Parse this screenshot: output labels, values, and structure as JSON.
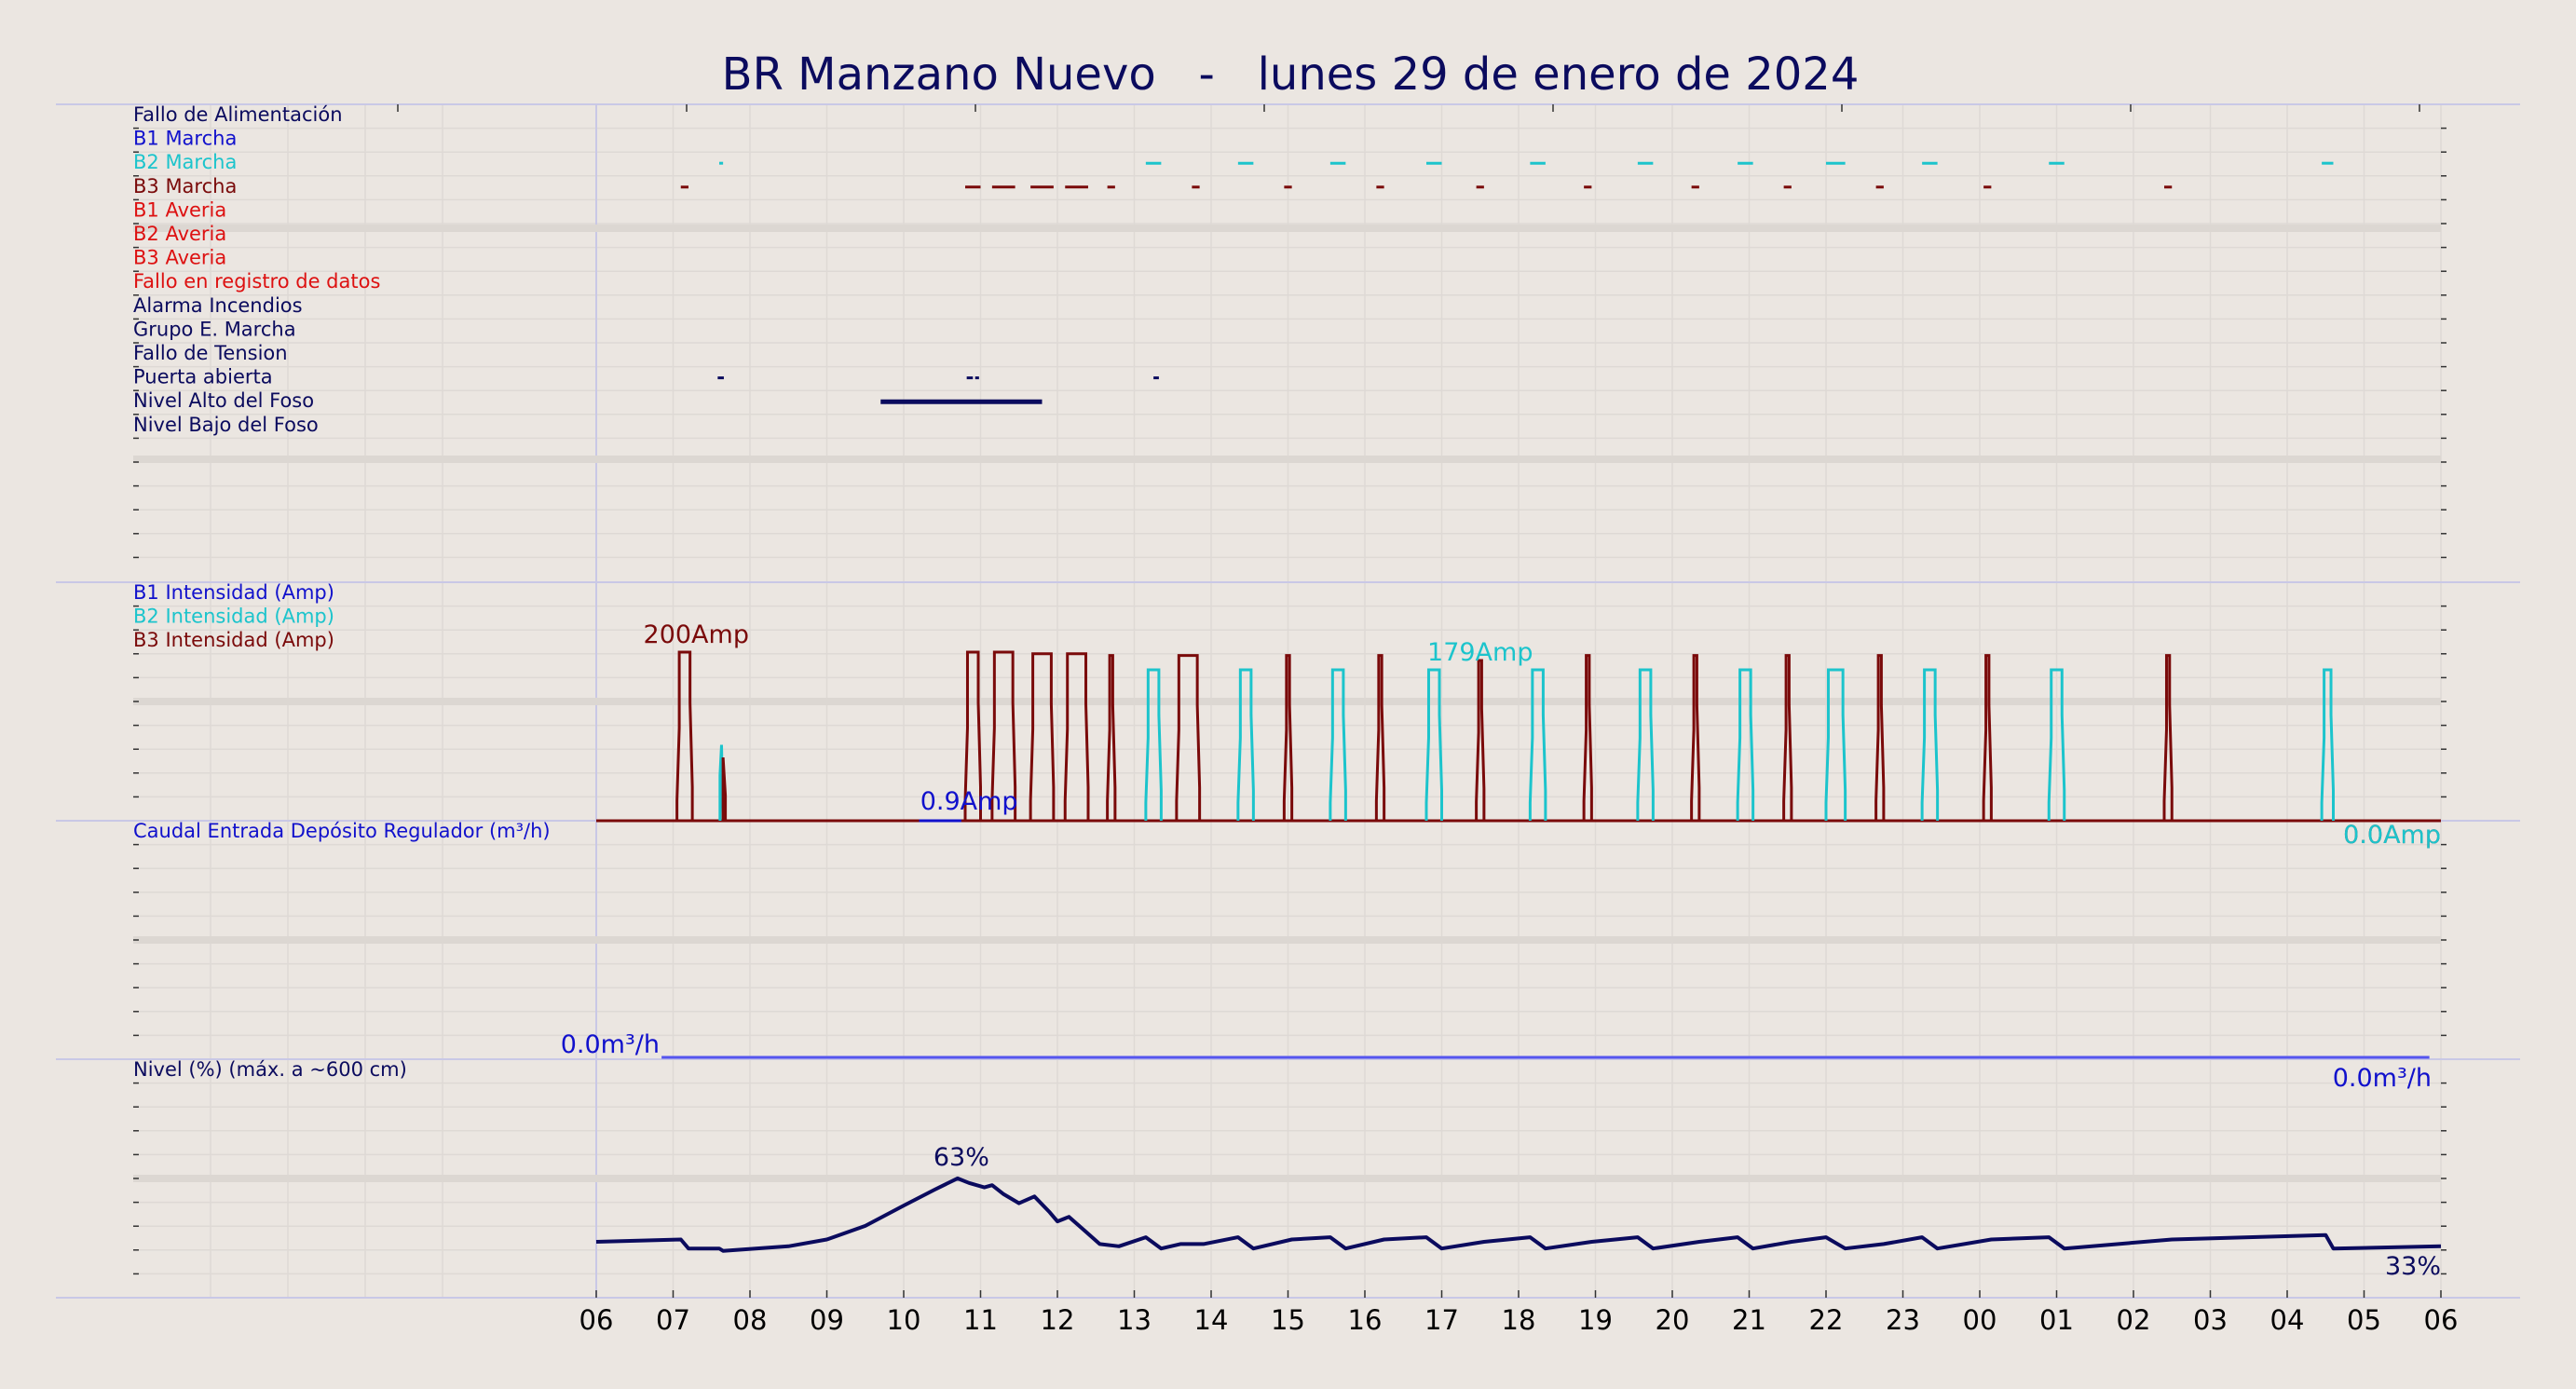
{
  "title": "BR Manzano Nuevo   -   lunes 29 de enero de 2024",
  "colors": {
    "background": "#ebe6e1",
    "navy": "#0b0b5e",
    "blue": "#1111cc",
    "cyan": "#1cc4cc",
    "maroon": "#7a0a0a",
    "red": "#dd1111",
    "flow": "#5555ee"
  },
  "chart_data": {
    "type": "line",
    "x_axis": {
      "range_hours": [
        6,
        30
      ],
      "tick_labels": [
        "06",
        "07",
        "08",
        "09",
        "10",
        "11",
        "12",
        "13",
        "14",
        "15",
        "16",
        "17",
        "18",
        "19",
        "20",
        "21",
        "22",
        "23",
        "00",
        "01",
        "02",
        "03",
        "04",
        "05",
        "06"
      ]
    },
    "panels": [
      {
        "id": "states",
        "legend": [
          {
            "label": "Fallo de Alimentación",
            "color": "navy"
          },
          {
            "label": "B1 Marcha",
            "color": "blue"
          },
          {
            "label": "B2 Marcha",
            "color": "cyan"
          },
          {
            "label": "B3 Marcha",
            "color": "maroon"
          },
          {
            "label": "B1 Averia",
            "color": "red"
          },
          {
            "label": "B2 Averia",
            "color": "red"
          },
          {
            "label": "B3 Averia",
            "color": "red"
          },
          {
            "label": "Fallo en registro de datos",
            "color": "red"
          },
          {
            "label": "Alarma Incendios",
            "color": "navy"
          },
          {
            "label": "Grupo E. Marcha",
            "color": "navy"
          },
          {
            "label": "Fallo de Tension",
            "color": "navy"
          },
          {
            "label": "Puerta abierta",
            "color": "navy"
          },
          {
            "label": "Nivel Alto del Foso",
            "color": "navy"
          },
          {
            "label": "Nivel Bajo del Foso",
            "color": "navy"
          }
        ],
        "segments": [
          {
            "row": 2,
            "color": "cyan",
            "start": 7.6,
            "end": 7.65
          },
          {
            "row": 2,
            "color": "cyan",
            "start": 13.15,
            "end": 13.35
          },
          {
            "row": 2,
            "color": "cyan",
            "start": 14.35,
            "end": 14.55
          },
          {
            "row": 2,
            "color": "cyan",
            "start": 15.55,
            "end": 15.75
          },
          {
            "row": 2,
            "color": "cyan",
            "start": 16.8,
            "end": 17.0
          },
          {
            "row": 2,
            "color": "cyan",
            "start": 18.15,
            "end": 18.35
          },
          {
            "row": 2,
            "color": "cyan",
            "start": 19.55,
            "end": 19.75
          },
          {
            "row": 2,
            "color": "cyan",
            "start": 20.85,
            "end": 21.05
          },
          {
            "row": 2,
            "color": "cyan",
            "start": 22.0,
            "end": 22.25
          },
          {
            "row": 2,
            "color": "cyan",
            "start": 23.25,
            "end": 23.45
          },
          {
            "row": 2,
            "color": "cyan",
            "start": 24.9,
            "end": 25.1
          },
          {
            "row": 2,
            "color": "cyan",
            "start": 28.45,
            "end": 28.6
          },
          {
            "row": 3,
            "color": "maroon",
            "start": 7.1,
            "end": 7.2
          },
          {
            "row": 3,
            "color": "maroon",
            "start": 10.8,
            "end": 11.0
          },
          {
            "row": 3,
            "color": "maroon",
            "start": 11.15,
            "end": 11.45
          },
          {
            "row": 3,
            "color": "maroon",
            "start": 11.65,
            "end": 11.95
          },
          {
            "row": 3,
            "color": "maroon",
            "start": 12.1,
            "end": 12.4
          },
          {
            "row": 3,
            "color": "maroon",
            "start": 12.65,
            "end": 12.75
          },
          {
            "row": 3,
            "color": "maroon",
            "start": 13.75,
            "end": 13.85
          },
          {
            "row": 3,
            "color": "maroon",
            "start": 14.95,
            "end": 15.05
          },
          {
            "row": 3,
            "color": "maroon",
            "start": 16.15,
            "end": 16.25
          },
          {
            "row": 3,
            "color": "maroon",
            "start": 17.45,
            "end": 17.55
          },
          {
            "row": 3,
            "color": "maroon",
            "start": 18.85,
            "end": 18.95
          },
          {
            "row": 3,
            "color": "maroon",
            "start": 20.25,
            "end": 20.35
          },
          {
            "row": 3,
            "color": "maroon",
            "start": 21.45,
            "end": 21.55
          },
          {
            "row": 3,
            "color": "maroon",
            "start": 22.65,
            "end": 22.75
          },
          {
            "row": 3,
            "color": "maroon",
            "start": 24.05,
            "end": 24.15
          },
          {
            "row": 3,
            "color": "maroon",
            "start": 26.4,
            "end": 26.5
          },
          {
            "row": 11,
            "color": "navy",
            "start": 7.58,
            "end": 7.66
          },
          {
            "row": 11,
            "color": "navy",
            "start": 10.82,
            "end": 10.9
          },
          {
            "row": 11,
            "color": "navy",
            "start": 10.93,
            "end": 10.98
          },
          {
            "row": 11,
            "color": "navy",
            "start": 13.25,
            "end": 13.32
          },
          {
            "row": 12,
            "color": "navy",
            "start": 9.7,
            "end": 11.8
          }
        ]
      },
      {
        "id": "intensity",
        "legend": [
          {
            "label": "B1 Intensidad (Amp)",
            "color": "blue"
          },
          {
            "label": "B2 Intensidad (Amp)",
            "color": "cyan"
          },
          {
            "label": "B3 Intensidad (Amp)",
            "color": "maroon"
          }
        ],
        "ylim": [
          0,
          210
        ],
        "b3_pulses": [
          [
            7.05,
            7.25,
            200
          ],
          [
            10.8,
            11.0,
            200
          ],
          [
            11.15,
            11.45,
            200
          ],
          [
            11.65,
            11.95,
            198
          ],
          [
            12.1,
            12.4,
            198
          ],
          [
            12.65,
            12.75,
            196
          ],
          [
            14.95,
            15.05,
            196
          ],
          [
            16.15,
            16.25,
            196
          ],
          [
            17.45,
            17.55,
            190
          ],
          [
            18.85,
            18.95,
            196
          ],
          [
            20.25,
            20.35,
            196
          ],
          [
            21.45,
            21.55,
            196
          ],
          [
            22.65,
            22.75,
            196
          ],
          [
            24.05,
            24.15,
            196
          ],
          [
            26.4,
            26.5,
            196
          ]
        ],
        "b2_pulses": [
          [
            13.15,
            13.35,
            179
          ],
          [
            14.35,
            14.55,
            179
          ],
          [
            15.55,
            15.75,
            179
          ],
          [
            16.8,
            17.0,
            179
          ],
          [
            18.15,
            18.35,
            179
          ],
          [
            19.55,
            19.75,
            179
          ],
          [
            20.85,
            21.05,
            179
          ],
          [
            22.0,
            22.25,
            179
          ],
          [
            23.25,
            23.45,
            179
          ],
          [
            24.9,
            25.1,
            179
          ],
          [
            28.45,
            28.6,
            179
          ]
        ],
        "b3_big_pulse": [
          [
            13.55,
            13.85,
            196
          ]
        ],
        "spike": {
          "x": 7.63,
          "b2": 90,
          "b3": 75
        },
        "annotations": [
          {
            "text": "200Amp",
            "x": 7.3,
            "value": 200,
            "color": "maroon"
          },
          {
            "text": "179Amp",
            "x": 17.5,
            "value": 179,
            "color": "cyan"
          },
          {
            "text": "0.9Amp",
            "x": 10.85,
            "value": 0.9,
            "color": "blue"
          },
          {
            "text": "0.0Amp",
            "x": 29.5,
            "value": 0,
            "color": "maroon"
          },
          {
            "text": "0.0Amp",
            "x": 29.65,
            "value": 0,
            "color": "cyan"
          }
        ]
      },
      {
        "id": "flow",
        "legend": [
          {
            "label": "Caudal Entrada Depósito Regulador (m³/h)",
            "color": "blue"
          }
        ],
        "value": 0.0,
        "annotations": [
          {
            "text": "0.0m³/h",
            "x": 6.0,
            "value": 0,
            "color": "blue"
          },
          {
            "text": "0.0m³/h",
            "x": 29.85,
            "value": 0,
            "color": "blue"
          }
        ]
      },
      {
        "id": "level",
        "legend": [
          {
            "label": "Nivel (%) (máx. a ~600 cm)",
            "color": "navy"
          }
        ],
        "ylim": [
          0,
          100
        ],
        "points": [
          [
            6.0,
            35
          ],
          [
            7.1,
            36
          ],
          [
            7.2,
            32
          ],
          [
            7.6,
            32
          ],
          [
            7.65,
            31
          ],
          [
            8.5,
            33
          ],
          [
            9.0,
            36
          ],
          [
            9.5,
            42
          ],
          [
            10.0,
            51
          ],
          [
            10.4,
            58
          ],
          [
            10.7,
            63
          ],
          [
            10.85,
            61
          ],
          [
            11.05,
            59
          ],
          [
            11.15,
            60
          ],
          [
            11.3,
            56
          ],
          [
            11.5,
            52
          ],
          [
            11.7,
            55
          ],
          [
            11.9,
            48
          ],
          [
            12.0,
            44
          ],
          [
            12.15,
            46
          ],
          [
            12.35,
            40
          ],
          [
            12.55,
            34
          ],
          [
            12.8,
            33
          ],
          [
            13.15,
            37
          ],
          [
            13.35,
            32
          ],
          [
            13.6,
            34
          ],
          [
            13.9,
            34
          ],
          [
            14.35,
            37
          ],
          [
            14.55,
            32
          ],
          [
            15.05,
            36
          ],
          [
            15.55,
            37
          ],
          [
            15.75,
            32
          ],
          [
            16.25,
            36
          ],
          [
            16.8,
            37
          ],
          [
            17.0,
            32
          ],
          [
            17.55,
            35
          ],
          [
            18.15,
            37
          ],
          [
            18.35,
            32
          ],
          [
            18.95,
            35
          ],
          [
            19.55,
            37
          ],
          [
            19.75,
            32
          ],
          [
            20.35,
            35
          ],
          [
            20.85,
            37
          ],
          [
            21.05,
            32
          ],
          [
            21.55,
            35
          ],
          [
            22.0,
            37
          ],
          [
            22.25,
            32
          ],
          [
            22.75,
            34
          ],
          [
            23.25,
            37
          ],
          [
            23.45,
            32
          ],
          [
            24.15,
            36
          ],
          [
            24.9,
            37
          ],
          [
            25.1,
            32
          ],
          [
            26.5,
            36
          ],
          [
            27.5,
            37
          ],
          [
            28.5,
            38
          ],
          [
            28.6,
            32
          ],
          [
            30.0,
            33
          ]
        ],
        "annotations": [
          {
            "text": "63%",
            "x": 10.75,
            "value": 63,
            "color": "navy"
          },
          {
            "text": "33%",
            "x": 29.95,
            "value": 33,
            "color": "navy"
          }
        ]
      }
    ]
  }
}
